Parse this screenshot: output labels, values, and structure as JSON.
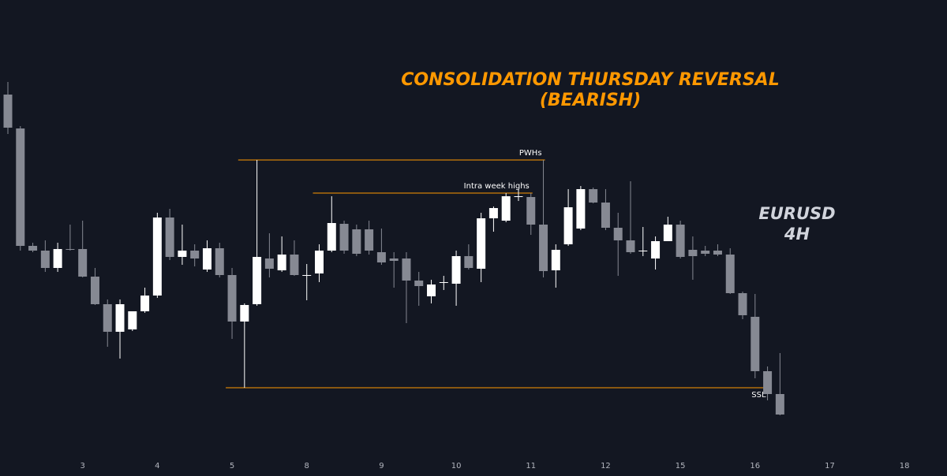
{
  "chart_data": {
    "type": "candlestick",
    "title": "CONSOLIDATION THURSDAY REVERSAL",
    "subtitle": "(BEARISH)",
    "symbol": "EURUSD",
    "timeframe": "4H",
    "title_color": "#ff9800",
    "up_color": "#ffffff",
    "down_color": "#868993",
    "level_color": "#ff9800",
    "ylim": [
      0,
      604
    ],
    "categories": [
      null,
      null,
      null,
      null,
      null,
      null,
      "3",
      null,
      null,
      null,
      null,
      null,
      "4",
      null,
      null,
      null,
      null,
      null,
      "5",
      null,
      null,
      null,
      null,
      null,
      "8",
      null,
      null,
      null,
      null,
      null,
      "9",
      null,
      null,
      null,
      null,
      null,
      "10",
      null,
      null,
      null,
      null,
      null,
      "11",
      null,
      null,
      null,
      null,
      null,
      "12",
      null,
      null,
      null,
      null,
      null,
      "15",
      null,
      null,
      null,
      null,
      null,
      "16",
      null,
      null,
      null,
      null,
      null,
      "17",
      null,
      null,
      null,
      null,
      null,
      "18"
    ],
    "open": [
      484,
      441,
      292,
      286,
      264,
      288,
      288,
      253,
      218,
      183,
      186,
      209,
      229,
      328,
      278,
      286,
      262,
      289,
      255,
      196,
      218,
      276,
      261,
      281,
      255,
      257,
      286,
      320,
      313,
      313,
      284,
      276,
      276,
      248,
      228,
      246,
      244,
      279,
      263,
      327,
      324,
      354,
      354,
      319,
      261,
      294,
      314,
      364,
      347,
      315,
      299,
      286,
      276,
      298,
      319,
      287,
      286,
      286,
      281,
      232,
      202,
      133,
      104,
      null,
      null,
      null,
      null,
      null,
      null,
      null,
      null,
      null,
      null
    ],
    "high": [
      500,
      444,
      296,
      299,
      296,
      319,
      324,
      264,
      224,
      224,
      209,
      239,
      334,
      339,
      319,
      294,
      299,
      296,
      264,
      219,
      401,
      308,
      304,
      299,
      269,
      294,
      355,
      324,
      319,
      324,
      314,
      284,
      284,
      259,
      249,
      254,
      286,
      294,
      334,
      342,
      359,
      364,
      359,
      401,
      294,
      364,
      368,
      366,
      364,
      334,
      374,
      316,
      304,
      329,
      324,
      304,
      292,
      294,
      289,
      234,
      231,
      139,
      156,
      null,
      null,
      null,
      null,
      null,
      null,
      null,
      null,
      null,
      null
    ],
    "low": [
      434,
      286,
      284,
      259,
      259,
      286,
      252,
      217,
      164,
      149,
      184,
      207,
      226,
      274,
      268,
      266,
      259,
      252,
      174,
      112,
      216,
      252,
      259,
      254,
      223,
      246,
      284,
      282,
      279,
      281,
      268,
      239,
      194,
      216,
      219,
      236,
      216,
      262,
      246,
      310,
      322,
      349,
      306,
      252,
      239,
      292,
      312,
      346,
      312,
      254,
      282,
      279,
      262,
      298,
      276,
      249,
      279,
      279,
      231,
      199,
      124,
      96,
      77,
      null,
      null,
      null,
      null,
      null,
      null,
      null,
      null,
      null,
      null
    ],
    "close": [
      442,
      292,
      286,
      264,
      288,
      287,
      253,
      218,
      183,
      218,
      209,
      229,
      328,
      278,
      286,
      276,
      289,
      255,
      196,
      217,
      278,
      263,
      281,
      255,
      255,
      286,
      321,
      286,
      282,
      286,
      271,
      273,
      248,
      241,
      243,
      246,
      279,
      264,
      327,
      340,
      355,
      355,
      319,
      260,
      287,
      341,
      364,
      347,
      315,
      299,
      284,
      286,
      298,
      319,
      278,
      279,
      282,
      281,
      232,
      204,
      133,
      104,
      78,
      null,
      null,
      null,
      null,
      null,
      null,
      null,
      null,
      null,
      null
    ],
    "levels": [
      {
        "text": "PWHs",
        "value": 401,
        "start": 19,
        "end": 43
      },
      {
        "text": "Intra week highs",
        "value": 359,
        "start": 25,
        "end": 42
      },
      {
        "text": "SSL",
        "value": 112,
        "start": 18,
        "end": 61
      }
    ]
  }
}
